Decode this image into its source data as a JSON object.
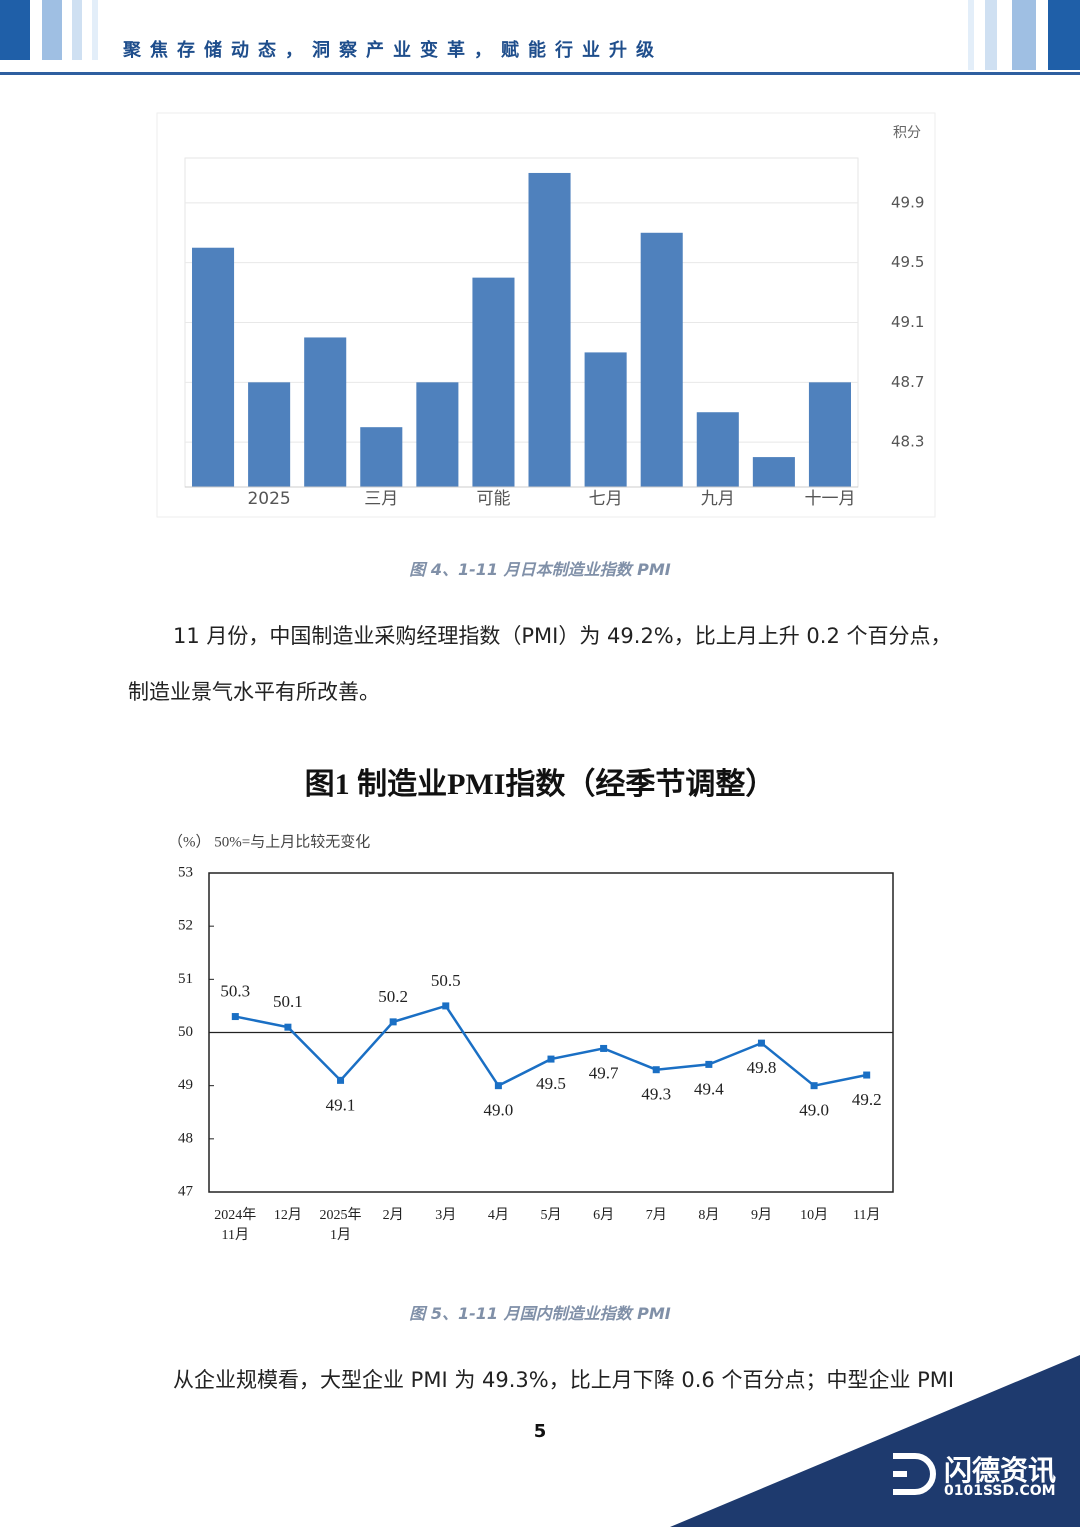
{
  "header": {
    "title": "聚焦存储动态，洞察产业变革，赋能行业升级"
  },
  "chart_data": [
    {
      "type": "bar",
      "unit_label": "积分",
      "categories": [
        null,
        "2025",
        null,
        "三月",
        null,
        "可能",
        null,
        "七月",
        null,
        "九月",
        null,
        "十一月"
      ],
      "values": [
        49.6,
        48.7,
        49.0,
        48.4,
        48.7,
        49.4,
        50.1,
        48.9,
        49.7,
        48.5,
        48.2,
        48.7
      ],
      "color": "#4f81bd",
      "ylim": [
        48.0,
        50.2
      ],
      "yticks": [
        48.3,
        48.7,
        49.1,
        49.5,
        49.9
      ],
      "grid": true,
      "y_axis_side": "right"
    },
    {
      "type": "line",
      "title": "图1  制造业PMI指数（经季节调整）",
      "subtitle": "（%） 50%=与上月比较无变化",
      "categories": [
        "2024年\n11月",
        "12月",
        "2025年\n1月",
        "2月",
        "3月",
        "4月",
        "5月",
        "6月",
        "7月",
        "8月",
        "9月",
        "10月",
        "11月"
      ],
      "values": [
        50.3,
        50.1,
        49.1,
        50.2,
        50.5,
        49.0,
        49.5,
        49.7,
        49.3,
        49.4,
        49.8,
        49.0,
        49.2
      ],
      "value_labels": [
        "50.3",
        "50.1",
        "49.1",
        "50.2",
        "50.5",
        "49.0",
        "49.5",
        "49.7",
        "49.3",
        "49.4",
        "49.8",
        "49.0",
        "49.2"
      ],
      "color": "#1a6fc4",
      "ylim": [
        47,
        53
      ],
      "yticks": [
        47,
        48,
        49,
        50,
        51,
        52,
        53
      ],
      "reference_line": 50
    }
  ],
  "captions": [
    "图 4、1-11 月日本制造业指数 PMI",
    "图 5、1-11 月国内制造业指数 PMI"
  ],
  "paragraphs": [
    "11 月份，中国制造业采购经理指数（PMI）为 49.2%，比上月上升 0.2 个百分点，制造业景气水平有所改善。",
    "从企业规模看，大型企业 PMI 为 49.3%，比上月下降 0.6 个百分点；中型企业 PMI"
  ],
  "page_number": "5",
  "logo": {
    "name": "闪德资讯",
    "url": "0101SSD.COM"
  }
}
